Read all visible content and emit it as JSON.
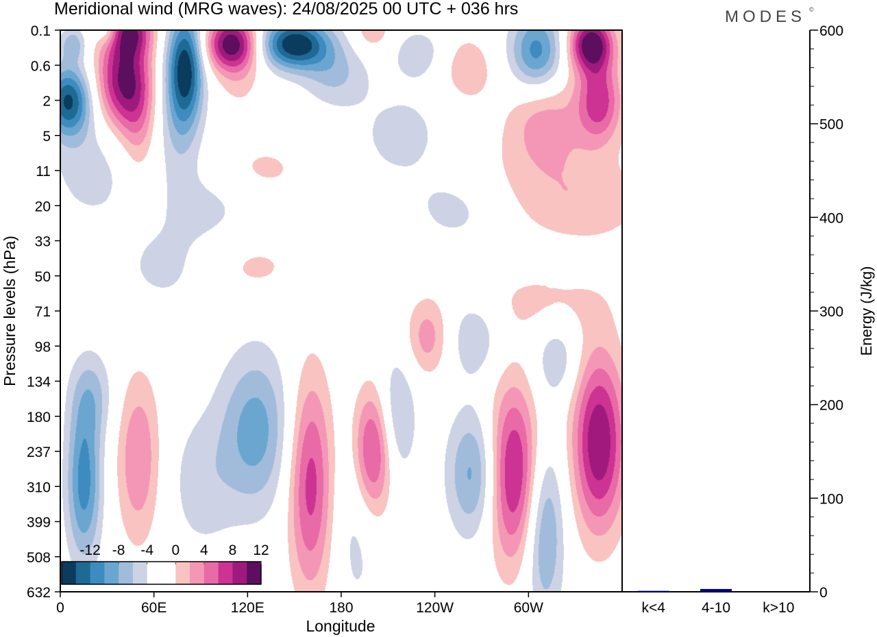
{
  "brand": "MODES",
  "brand_mark": "©",
  "chart_data": [
    {
      "type": "heatmap",
      "title": "Meridional wind (MRG waves):  24/08/2025  00 UTC  + 036 hrs",
      "xlabel": "Longitude",
      "ylabel": "Pressure levels (hPa)",
      "x_ticks": [
        "0",
        "60E",
        "120E",
        "180",
        "120W",
        "60W"
      ],
      "x_tick_positions_deg": [
        0,
        60,
        120,
        180,
        240,
        300
      ],
      "xlim_deg": [
        0,
        360
      ],
      "y_ticks": [
        "0.1",
        "0.6",
        "2",
        "5",
        "11",
        "20",
        "33",
        "50",
        "71",
        "98",
        "134",
        "180",
        "237",
        "310",
        "399",
        "508",
        "632"
      ],
      "colorbar": {
        "labels": [
          "-12",
          "-8",
          "-4",
          "0",
          "4",
          "8",
          "12"
        ],
        "colors": [
          "#0b3c5d",
          "#1e6a95",
          "#3d8bbf",
          "#6aa6d0",
          "#a1bcdb",
          "#cdd2e5",
          "#ffffff",
          "#ffffff",
          "#f8c3c0",
          "#f497b6",
          "#e86aa6",
          "#cc3392",
          "#a01a7d",
          "#5c0f5e"
        ]
      },
      "positive_colors": [
        "#f8c3c0",
        "#f497b6",
        "#e86aa6",
        "#cc3392",
        "#a01a7d",
        "#5c0f5e"
      ],
      "negative_colors": [
        "#cdd2e5",
        "#a1bcdb",
        "#6aa6d0",
        "#3d8bbf",
        "#1e6a95",
        "#0b3c5d"
      ],
      "features": [
        {
          "lon": 8,
          "lev": 0.2,
          "amp": -5,
          "slon": 6,
          "slev": 0.35
        },
        {
          "lon": 30,
          "lev": 0.1,
          "amp": -4,
          "slon": 5,
          "slev": 0.3
        },
        {
          "lon": 45,
          "lev": 0.1,
          "amp": 9,
          "slon": 10,
          "slev": 0.5
        },
        {
          "lon": 40,
          "lev": 1.0,
          "amp": 12,
          "slon": 12,
          "slev": 1.0
        },
        {
          "lon": 5,
          "lev": 2.0,
          "amp": -12,
          "slon": 10,
          "slev": 0.7
        },
        {
          "lon": 50,
          "lev": 3.5,
          "amp": 4,
          "slon": 8,
          "slev": 1.2
        },
        {
          "lon": 80,
          "lev": 0.6,
          "amp": -12,
          "slon": 8,
          "slev": 1.1
        },
        {
          "lon": 76,
          "lev": 3.0,
          "amp": -4,
          "slon": 10,
          "slev": 1.4
        },
        {
          "lon": 110,
          "lev": 0.2,
          "amp": 14,
          "slon": 12,
          "slev": 0.55
        },
        {
          "lon": 115,
          "lev": 1.2,
          "amp": 2,
          "slon": 10,
          "slev": 0.6
        },
        {
          "lon": 150,
          "lev": 0.2,
          "amp": -14,
          "slon": 16,
          "slev": 0.5
        },
        {
          "lon": 175,
          "lev": 0.8,
          "amp": -4,
          "slon": 14,
          "slev": 0.6
        },
        {
          "lon": 200,
          "lev": 0.1,
          "amp": 4,
          "slon": 8,
          "slev": 0.4
        },
        {
          "lon": 230,
          "lev": 0.3,
          "amp": -3,
          "slon": 12,
          "slev": 0.5
        },
        {
          "lon": 260,
          "lev": 0.7,
          "amp": 4,
          "slon": 12,
          "slev": 0.7
        },
        {
          "lon": 305,
          "lev": 0.3,
          "amp": -9,
          "slon": 12,
          "slev": 0.8
        },
        {
          "lon": 340,
          "lev": 0.2,
          "amp": 14,
          "slon": 10,
          "slev": 0.55
        },
        {
          "lon": 345,
          "lev": 2.0,
          "amp": 9,
          "slon": 10,
          "slev": 0.8
        },
        {
          "lon": 310,
          "lev": 3.0,
          "amp": 4,
          "slon": 16,
          "slev": 0.9
        },
        {
          "lon": 220,
          "lev": 5.0,
          "amp": -2.5,
          "slon": 30,
          "slev": 1.3
        },
        {
          "lon": 310,
          "lev": 10.0,
          "amp": 2.5,
          "slon": 35,
          "slev": 1.2
        },
        {
          "lon": 20,
          "lev": 10.0,
          "amp": -3,
          "slon": 20,
          "slev": 1.2
        },
        {
          "lon": 95,
          "lev": 20.0,
          "amp": -2.5,
          "slon": 20,
          "slev": 0.8
        },
        {
          "lon": 340,
          "lev": 20.0,
          "amp": 2.5,
          "slon": 30,
          "slev": 0.8
        },
        {
          "lon": 130,
          "lev": 10.5,
          "amp": 2.5,
          "slon": 22,
          "slev": 0.6
        },
        {
          "lon": 255,
          "lev": 22.0,
          "amp": -2.5,
          "slon": 20,
          "slev": 0.7
        },
        {
          "lon": 65,
          "lev": 45.0,
          "amp": -2.5,
          "slon": 20,
          "slev": 0.9
        },
        {
          "lon": 125,
          "lev": 45.0,
          "amp": 2.5,
          "slon": 20,
          "slev": 0.6
        },
        {
          "lon": 310,
          "lev": 65.0,
          "amp": 2.5,
          "slon": 30,
          "slev": 0.7
        },
        {
          "lon": 265,
          "lev": 90.0,
          "amp": -4,
          "slon": 12,
          "slev": 0.8
        },
        {
          "lon": 235,
          "lev": 90.0,
          "amp": 5,
          "slon": 10,
          "slev": 0.8
        },
        {
          "lon": 20,
          "lev": 150.0,
          "amp": -4,
          "slon": 10,
          "slev": 0.9
        },
        {
          "lon": 15,
          "lev": 300.0,
          "amp": -9,
          "slon": 8,
          "slev": 1.6
        },
        {
          "lon": 50,
          "lev": 250.0,
          "amp": 6,
          "slon": 10,
          "slev": 1.7
        },
        {
          "lon": 90,
          "lev": 300.0,
          "amp": -3,
          "slon": 16,
          "slev": 1.5
        },
        {
          "lon": 125,
          "lev": 200.0,
          "amp": -7,
          "slon": 16,
          "slev": 1.6
        },
        {
          "lon": 160,
          "lev": 300.0,
          "amp": 9,
          "slon": 10,
          "slev": 2.2
        },
        {
          "lon": 190,
          "lev": 400.0,
          "amp": -3,
          "slon": 10,
          "slev": 2.0
        },
        {
          "lon": 200,
          "lev": 237.0,
          "amp": 10,
          "slon": 9,
          "slev": 1.3
        },
        {
          "lon": 215,
          "lev": 180.0,
          "amp": -5,
          "slon": 9,
          "slev": 1.3
        },
        {
          "lon": 265,
          "lev": 280.0,
          "amp": -7,
          "slon": 12,
          "slev": 1.3
        },
        {
          "lon": 290,
          "lev": 280.0,
          "amp": 11,
          "slon": 12,
          "slev": 1.8
        },
        {
          "lon": 310,
          "lev": 420.0,
          "amp": -7,
          "slon": 9,
          "slev": 1.8
        },
        {
          "lon": 345,
          "lev": 220.0,
          "amp": 12,
          "slon": 12,
          "slev": 1.8
        },
        {
          "lon": 318,
          "lev": 110.0,
          "amp": -4,
          "slon": 10,
          "slev": 0.8
        }
      ]
    },
    {
      "type": "bar",
      "ylabel": "Energy (J/kg)",
      "categories": [
        "k<4",
        "4-10",
        "k>10"
      ],
      "values": [
        1,
        3,
        0
      ],
      "ylim": [
        0,
        600
      ],
      "y_ticks": [
        "0",
        "100",
        "200",
        "300",
        "400",
        "500",
        "600"
      ],
      "bar_color": "#000080"
    }
  ]
}
